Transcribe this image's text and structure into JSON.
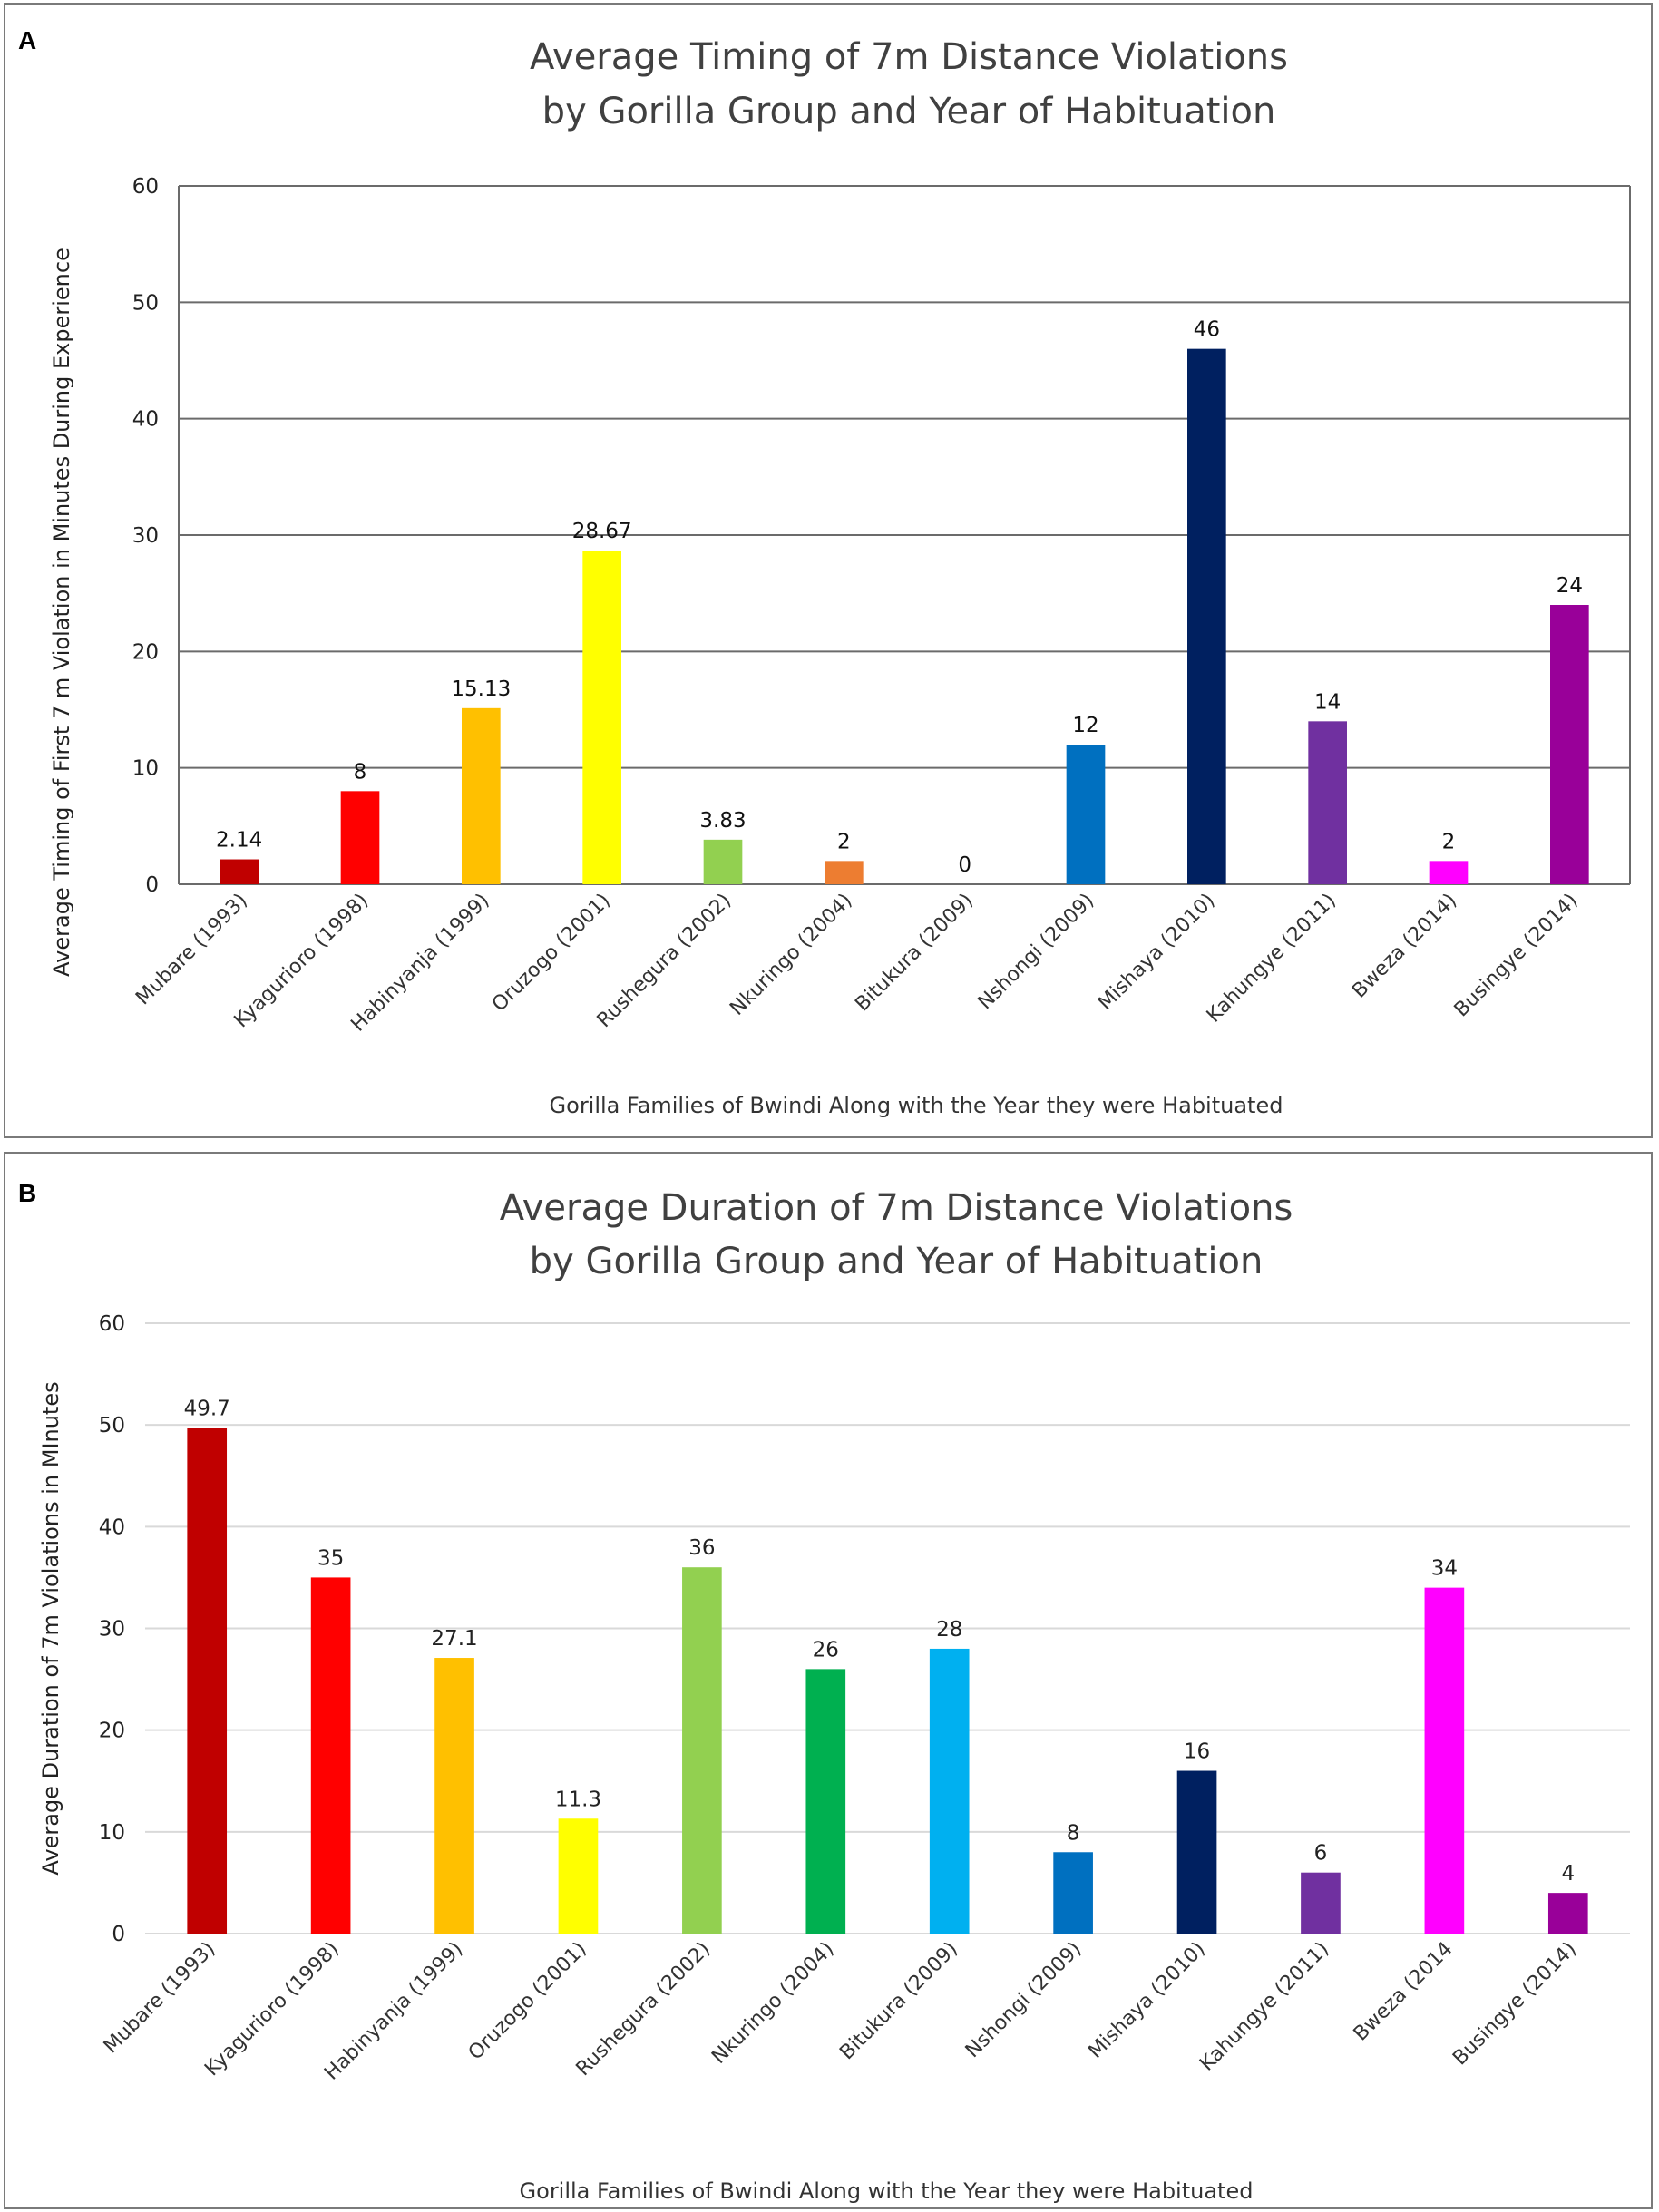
{
  "colors": {
    "Mubare": "#c00000",
    "Kyagurioro": "#ff0000",
    "Habinyanja": "#ffc000",
    "Oruzogo": "#ffff00",
    "Rushegura": "#92d050",
    "Nkuringo": "#ed7d31",
    "Nkuringo_B": "#00b050",
    "Bitukura": "#00b0f0",
    "Nshongi": "#0070c0",
    "Mishaya": "#002060",
    "Kahungye": "#7030a0",
    "Bweza": "#ff00ff",
    "Busingye": "#990099"
  },
  "chart_data": [
    {
      "panel_label": "A",
      "type": "bar",
      "title": [
        "Average Timing of 7m Distance Violations",
        "by Gorilla Group and Year of Habituation"
      ],
      "xlabel": "Gorilla Families of Bwindi Along with the Year they were Habituated",
      "ylabel": "Average Timing of First 7 m Violation in Minutes During Experience",
      "ylim": [
        0,
        60
      ],
      "yticks": [
        0,
        10,
        20,
        30,
        40,
        50,
        60
      ],
      "grid": true,
      "categories": [
        "Mubare (1993)",
        "Kyagurioro (1998)",
        "Habinyanja (1999)",
        "Oruzogo (2001)",
        "Rushegura (2002)",
        "Nkuringo (2004)",
        "Bitukura (2009)",
        "Nshongi (2009)",
        "Mishaya (2010)",
        "Kahungye (2011)",
        "Bweza (2014)",
        "Busingye (2014)"
      ],
      "values": [
        2.14,
        8,
        15.13,
        28.67,
        3.83,
        2,
        0,
        12,
        46,
        14,
        2,
        24
      ],
      "value_labels": [
        "2.14",
        "8",
        "15.13",
        "28.67",
        "3.83",
        "2",
        "0",
        "12",
        "46",
        "14",
        "2",
        "24"
      ],
      "bar_colors": [
        "#c00000",
        "#ff0000",
        "#ffc000",
        "#ffff00",
        "#92d050",
        "#ed7d31",
        "#ffffff",
        "#0070c0",
        "#002060",
        "#7030a0",
        "#ff00ff",
        "#990099"
      ]
    },
    {
      "panel_label": "B",
      "type": "bar",
      "title": [
        "Average Duration of 7m Distance Violations",
        "by Gorilla Group and Year of Habituation"
      ],
      "xlabel": "Gorilla Families of Bwindi Along with the Year they were Habituated",
      "ylabel": "Average Duration of 7m Violations in MInutes",
      "ylim": [
        0,
        60
      ],
      "yticks": [
        0,
        10,
        20,
        30,
        40,
        50,
        60
      ],
      "grid": true,
      "categories": [
        "Mubare (1993)",
        "Kyagurioro (1998)",
        "Habinyanja (1999)",
        "Oruzogo (2001)",
        "Rushegura (2002)",
        "Nkuringo (2004)",
        "Bitukura (2009)",
        "Nshongi (2009)",
        "Mishaya (2010)",
        "Kahungye (2011)",
        "Bweza (2014",
        "Busingye (2014)"
      ],
      "values": [
        49.7,
        35,
        27.1,
        11.3,
        36,
        26,
        28,
        8,
        16,
        6,
        34,
        4
      ],
      "value_labels": [
        "49.7",
        "35",
        "27.1",
        "11.3",
        "36",
        "26",
        "28",
        "8",
        "16",
        "6",
        "34",
        "4"
      ],
      "bar_colors": [
        "#c00000",
        "#ff0000",
        "#ffc000",
        "#ffff00",
        "#92d050",
        "#00b050",
        "#00b0f0",
        "#0070c0",
        "#002060",
        "#7030a0",
        "#ff00ff",
        "#990099"
      ]
    }
  ]
}
